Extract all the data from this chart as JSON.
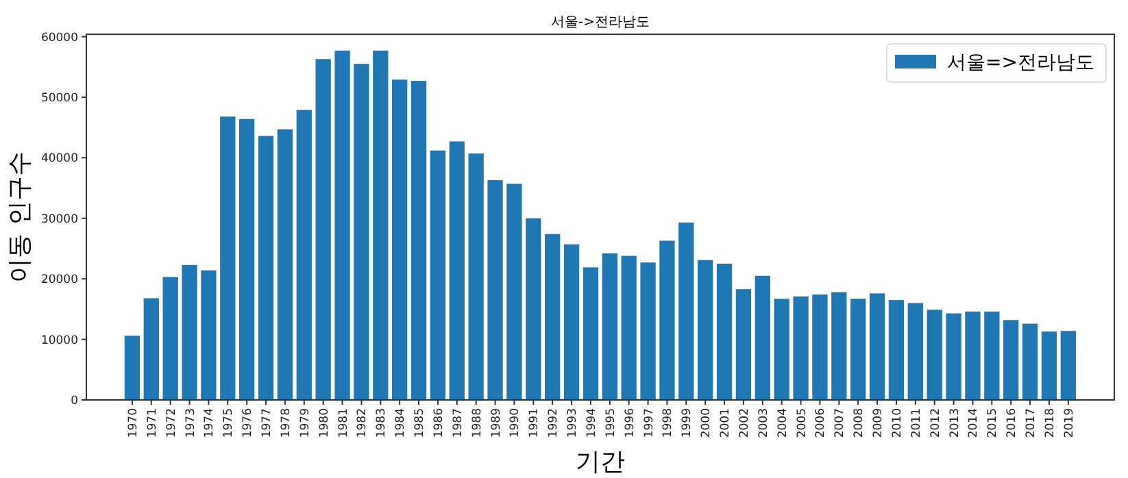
{
  "chart_data": {
    "type": "bar",
    "title": "서울->전라남도",
    "xlabel": "기간",
    "ylabel": "이동 인구수",
    "categories": [
      "1970",
      "1971",
      "1972",
      "1973",
      "1974",
      "1975",
      "1976",
      "1977",
      "1978",
      "1979",
      "1980",
      "1981",
      "1982",
      "1983",
      "1984",
      "1985",
      "1986",
      "1987",
      "1988",
      "1989",
      "1990",
      "1991",
      "1992",
      "1993",
      "1994",
      "1995",
      "1996",
      "1997",
      "1998",
      "1999",
      "2000",
      "2001",
      "2002",
      "2003",
      "2004",
      "2005",
      "2006",
      "2007",
      "2008",
      "2009",
      "2010",
      "2011",
      "2012",
      "2013",
      "2014",
      "2015",
      "2016",
      "2017",
      "2018",
      "2019"
    ],
    "series": [
      {
        "name": "서울=>전라남도",
        "color": "#1f77b4",
        "values": [
          10600,
          16800,
          20300,
          22300,
          21400,
          46800,
          46400,
          43600,
          44700,
          47900,
          56300,
          57700,
          55500,
          57700,
          52900,
          52700,
          41200,
          42700,
          40700,
          36300,
          35700,
          30000,
          27400,
          25700,
          21900,
          24200,
          23800,
          22700,
          26300,
          29300,
          23100,
          22500,
          18300,
          20500,
          16700,
          17100,
          17400,
          17800,
          16700,
          17600,
          16500,
          16000,
          14900,
          14300,
          14600,
          14600,
          13200,
          12600,
          11300,
          11400
        ]
      }
    ],
    "ylim": [
      0,
      60400
    ],
    "yticks": [
      0,
      10000,
      20000,
      30000,
      40000,
      50000,
      60000
    ],
    "legend": "top right",
    "grid": false
  }
}
